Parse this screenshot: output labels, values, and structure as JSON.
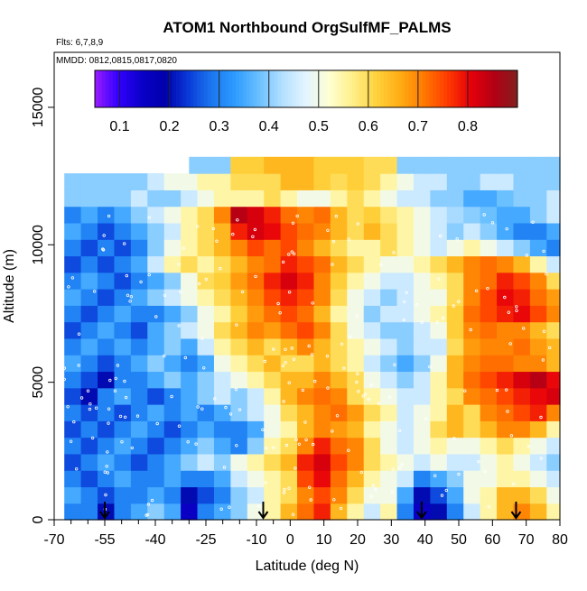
{
  "chart_data": {
    "type": "heatmap",
    "title": "ATOM1 Northbound OrgSulfMF_PALMS",
    "notes": [
      "Flts: 6,7,8,9",
      "MMDD: 0812,0815,0817,0820"
    ],
    "xlabel": "Latitude (deg N)",
    "ylabel": "Altitude (m)",
    "xlim": [
      -70,
      80
    ],
    "ylim": [
      0,
      17000
    ],
    "x_ticks": [
      -70,
      -55,
      -40,
      -25,
      -10,
      0,
      10,
      20,
      30,
      40,
      50,
      60,
      70,
      80
    ],
    "x_tick_labels": [
      "-70",
      "-55",
      "-40",
      "-25",
      "-10",
      "0",
      "10",
      "20",
      "30",
      "40",
      "50",
      "60",
      "70",
      "80"
    ],
    "x_minor_ticks": [
      -65,
      -60,
      -50,
      -45,
      -35,
      -30,
      -20,
      -15,
      -5
    ],
    "y_ticks": [
      0,
      5000,
      10000,
      15000
    ],
    "y_tick_labels": [
      "0",
      "5000",
      "10000",
      "15000"
    ],
    "colorbar": {
      "range": [
        0.05,
        0.9
      ],
      "ticks": [
        0.1,
        0.2,
        0.3,
        0.4,
        0.5,
        0.6,
        0.7,
        0.8
      ],
      "tick_labels": [
        "0.1",
        "0.2",
        "0.3",
        "0.4",
        "0.5",
        "0.6",
        "0.7",
        "0.8"
      ],
      "colors": [
        "#9a1cff",
        "#3200ff",
        "#0a00c8",
        "#0000aa",
        "#0a3cd8",
        "#1c78f0",
        "#2e9cff",
        "#6cc0ff",
        "#b4e0ff",
        "#e4f4ff",
        "#ffffd2",
        "#ffee88",
        "#ffd23c",
        "#ffac14",
        "#ff7a00",
        "#ff3c00",
        "#e6000a",
        "#b40014",
        "#822020"
      ]
    },
    "flight_markers_lat": [
      -55,
      -8,
      39,
      67
    ],
    "altitude_range": [
      0,
      12900
    ],
    "lat_coverage": [
      -67,
      81
    ],
    "bands": [
      {
        "alt": 300,
        "v": [
          0.3,
          0.3,
          0.2,
          0.3,
          0.35,
          0.4,
          0.35,
          0.15,
          0.3,
          0.35,
          0.4,
          0.5,
          0.55,
          0.65,
          0.72,
          0.78,
          0.65,
          0.55,
          0.45,
          0.55,
          0.3,
          0.15,
          0.2,
          0.3,
          0.45,
          0.55,
          0.65,
          0.7,
          0.65,
          0.55
        ]
      },
      {
        "alt": 900,
        "v": [
          0.35,
          0.3,
          0.25,
          0.3,
          0.3,
          0.35,
          0.3,
          0.2,
          0.25,
          0.3,
          0.4,
          0.45,
          0.55,
          0.6,
          0.7,
          0.75,
          0.7,
          0.6,
          0.5,
          0.5,
          0.35,
          0.2,
          0.25,
          0.35,
          0.5,
          0.55,
          0.65,
          0.65,
          0.6,
          0.5
        ]
      },
      {
        "alt": 1500,
        "v": [
          0.3,
          0.25,
          0.3,
          0.35,
          0.3,
          0.3,
          0.35,
          0.3,
          0.3,
          0.35,
          0.45,
          0.5,
          0.55,
          0.6,
          0.75,
          0.8,
          0.72,
          0.65,
          0.55,
          0.5,
          0.45,
          0.3,
          0.35,
          0.4,
          0.5,
          0.5,
          0.55,
          0.55,
          0.5,
          0.45
        ]
      },
      {
        "alt": 2100,
        "v": [
          0.25,
          0.3,
          0.35,
          0.3,
          0.25,
          0.3,
          0.35,
          0.4,
          0.45,
          0.4,
          0.5,
          0.55,
          0.6,
          0.65,
          0.78,
          0.82,
          0.75,
          0.7,
          0.6,
          0.55,
          0.5,
          0.45,
          0.5,
          0.45,
          0.45,
          0.5,
          0.55,
          0.5,
          0.45,
          0.4
        ]
      },
      {
        "alt": 2700,
        "v": [
          0.3,
          0.25,
          0.3,
          0.35,
          0.3,
          0.25,
          0.3,
          0.35,
          0.4,
          0.35,
          0.3,
          0.4,
          0.55,
          0.6,
          0.7,
          0.78,
          0.72,
          0.7,
          0.6,
          0.5,
          0.45,
          0.5,
          0.55,
          0.5,
          0.5,
          0.55,
          0.6,
          0.55,
          0.5,
          0.45
        ]
      },
      {
        "alt": 3300,
        "v": [
          0.25,
          0.3,
          0.25,
          0.3,
          0.35,
          0.3,
          0.25,
          0.3,
          0.35,
          0.3,
          0.3,
          0.35,
          0.5,
          0.55,
          0.65,
          0.7,
          0.68,
          0.65,
          0.55,
          0.5,
          0.45,
          0.5,
          0.6,
          0.65,
          0.6,
          0.65,
          0.7,
          0.7,
          0.65,
          0.55
        ]
      },
      {
        "alt": 3900,
        "v": [
          0.3,
          0.25,
          0.3,
          0.25,
          0.3,
          0.35,
          0.3,
          0.35,
          0.3,
          0.35,
          0.4,
          0.45,
          0.5,
          0.6,
          0.65,
          0.7,
          0.72,
          0.68,
          0.6,
          0.55,
          0.45,
          0.5,
          0.55,
          0.65,
          0.6,
          0.7,
          0.72,
          0.75,
          0.78,
          0.7
        ]
      },
      {
        "alt": 4500,
        "v": [
          0.25,
          0.2,
          0.3,
          0.35,
          0.3,
          0.25,
          0.3,
          0.35,
          0.4,
          0.45,
          0.4,
          0.45,
          0.55,
          0.65,
          0.7,
          0.72,
          0.7,
          0.6,
          0.55,
          0.5,
          0.45,
          0.45,
          0.55,
          0.6,
          0.7,
          0.72,
          0.75,
          0.78,
          0.8,
          0.82
        ]
      },
      {
        "alt": 5100,
        "v": [
          0.3,
          0.25,
          0.2,
          0.3,
          0.3,
          0.35,
          0.4,
          0.35,
          0.4,
          0.45,
          0.5,
          0.55,
          0.6,
          0.65,
          0.65,
          0.7,
          0.65,
          0.6,
          0.5,
          0.45,
          0.4,
          0.45,
          0.55,
          0.65,
          0.72,
          0.75,
          0.78,
          0.82,
          0.85,
          0.8
        ]
      },
      {
        "alt": 5700,
        "v": [
          0.35,
          0.3,
          0.25,
          0.3,
          0.35,
          0.4,
          0.35,
          0.3,
          0.35,
          0.5,
          0.55,
          0.6,
          0.65,
          0.6,
          0.6,
          0.65,
          0.6,
          0.55,
          0.45,
          0.4,
          0.35,
          0.4,
          0.5,
          0.65,
          0.7,
          0.72,
          0.72,
          0.7,
          0.7,
          0.65
        ]
      },
      {
        "alt": 6300,
        "v": [
          0.3,
          0.35,
          0.3,
          0.35,
          0.3,
          0.35,
          0.4,
          0.35,
          0.45,
          0.55,
          0.6,
          0.65,
          0.6,
          0.65,
          0.7,
          0.65,
          0.6,
          0.55,
          0.5,
          0.45,
          0.4,
          0.45,
          0.45,
          0.6,
          0.68,
          0.7,
          0.7,
          0.72,
          0.68,
          0.65
        ]
      },
      {
        "alt": 6900,
        "v": [
          0.25,
          0.3,
          0.35,
          0.3,
          0.25,
          0.35,
          0.4,
          0.45,
          0.5,
          0.6,
          0.65,
          0.7,
          0.68,
          0.72,
          0.75,
          0.7,
          0.6,
          0.5,
          0.45,
          0.4,
          0.4,
          0.45,
          0.5,
          0.62,
          0.7,
          0.72,
          0.7,
          0.7,
          0.65,
          0.6
        ]
      },
      {
        "alt": 7500,
        "v": [
          0.3,
          0.25,
          0.3,
          0.35,
          0.3,
          0.3,
          0.35,
          0.4,
          0.5,
          0.55,
          0.62,
          0.68,
          0.72,
          0.75,
          0.72,
          0.65,
          0.55,
          0.5,
          0.4,
          0.45,
          0.45,
          0.5,
          0.55,
          0.62,
          0.72,
          0.75,
          0.78,
          0.8,
          0.75,
          0.7
        ]
      },
      {
        "alt": 8100,
        "v": [
          0.35,
          0.3,
          0.25,
          0.3,
          0.35,
          0.4,
          0.45,
          0.5,
          0.55,
          0.6,
          0.65,
          0.7,
          0.75,
          0.78,
          0.75,
          0.7,
          0.6,
          0.5,
          0.45,
          0.4,
          0.45,
          0.5,
          0.5,
          0.6,
          0.7,
          0.75,
          0.8,
          0.78,
          0.72,
          0.68
        ]
      },
      {
        "alt": 8700,
        "v": [
          0.3,
          0.35,
          0.3,
          0.25,
          0.3,
          0.35,
          0.4,
          0.5,
          0.6,
          0.62,
          0.68,
          0.72,
          0.78,
          0.82,
          0.78,
          0.7,
          0.62,
          0.55,
          0.5,
          0.45,
          0.45,
          0.5,
          0.55,
          0.6,
          0.7,
          0.72,
          0.78,
          0.75,
          0.7,
          0.6
        ]
      },
      {
        "alt": 9300,
        "v": [
          0.25,
          0.3,
          0.25,
          0.3,
          0.35,
          0.45,
          0.55,
          0.6,
          0.55,
          0.6,
          0.65,
          0.7,
          0.72,
          0.78,
          0.75,
          0.72,
          0.65,
          0.6,
          0.55,
          0.5,
          0.5,
          0.55,
          0.6,
          0.65,
          0.7,
          0.72,
          0.7,
          0.65,
          0.55,
          0.45
        ]
      },
      {
        "alt": 9900,
        "v": [
          0.3,
          0.25,
          0.3,
          0.25,
          0.3,
          0.4,
          0.5,
          0.55,
          0.6,
          0.65,
          0.7,
          0.75,
          0.72,
          0.75,
          0.7,
          0.65,
          0.6,
          0.55,
          0.55,
          0.6,
          0.55,
          0.5,
          0.45,
          0.5,
          0.55,
          0.5,
          0.45,
          0.4,
          0.35,
          0.3
        ]
      },
      {
        "alt": 10500,
        "v": [
          0.35,
          0.3,
          0.25,
          0.3,
          0.35,
          0.4,
          0.45,
          0.55,
          0.6,
          0.65,
          0.78,
          0.82,
          0.8,
          0.75,
          0.72,
          0.7,
          0.65,
          0.6,
          0.65,
          0.6,
          0.55,
          0.5,
          0.45,
          0.4,
          0.45,
          0.4,
          0.35,
          0.3,
          0.3,
          0.35
        ]
      },
      {
        "alt": 11100,
        "v": [
          0.3,
          0.35,
          0.3,
          0.35,
          0.4,
          0.45,
          0.5,
          0.55,
          0.6,
          0.7,
          0.85,
          0.82,
          0.78,
          0.72,
          0.7,
          0.72,
          0.65,
          0.6,
          0.62,
          0.58,
          0.55,
          0.5,
          0.45,
          0.42,
          0.4,
          0.38,
          0.35,
          0.35,
          0.4,
          0.45
        ]
      },
      {
        "alt": 11700,
        "v": [
          0.4,
          0.4,
          0.4,
          0.4,
          0.45,
          0.4,
          0.4,
          0.45,
          0.5,
          0.55,
          0.55,
          0.55,
          0.6,
          0.55,
          0.5,
          0.5,
          0.55,
          0.6,
          0.55,
          0.5,
          0.45,
          0.45,
          0.4,
          0.4,
          0.35,
          0.35,
          0.38,
          0.4,
          0.4,
          0.45
        ]
      },
      {
        "alt": 12300,
        "v": [
          0.4,
          0.4,
          0.4,
          0.4,
          0.4,
          0.45,
          0.5,
          0.5,
          0.55,
          0.55,
          0.6,
          0.6,
          0.6,
          0.65,
          0.65,
          0.62,
          0.6,
          0.62,
          0.6,
          0.55,
          0.5,
          0.45,
          0.45,
          0.4,
          0.4,
          0.45,
          0.45,
          0.4,
          0.4,
          0.4
        ]
      },
      {
        "alt": 12900,
        "v": [
          0.4,
          0.4,
          0.4,
          0.4,
          0.4,
          0.4,
          0.4,
          0.4,
          0.4,
          0.4,
          0.62,
          0.62,
          0.65,
          0.65,
          0.65,
          0.62,
          0.62,
          0.62,
          0.6,
          0.6,
          0.4,
          0.4,
          0.4,
          0.4,
          0.4,
          0.4,
          0.4,
          0.4,
          0.4,
          0.4
        ]
      }
    ]
  }
}
